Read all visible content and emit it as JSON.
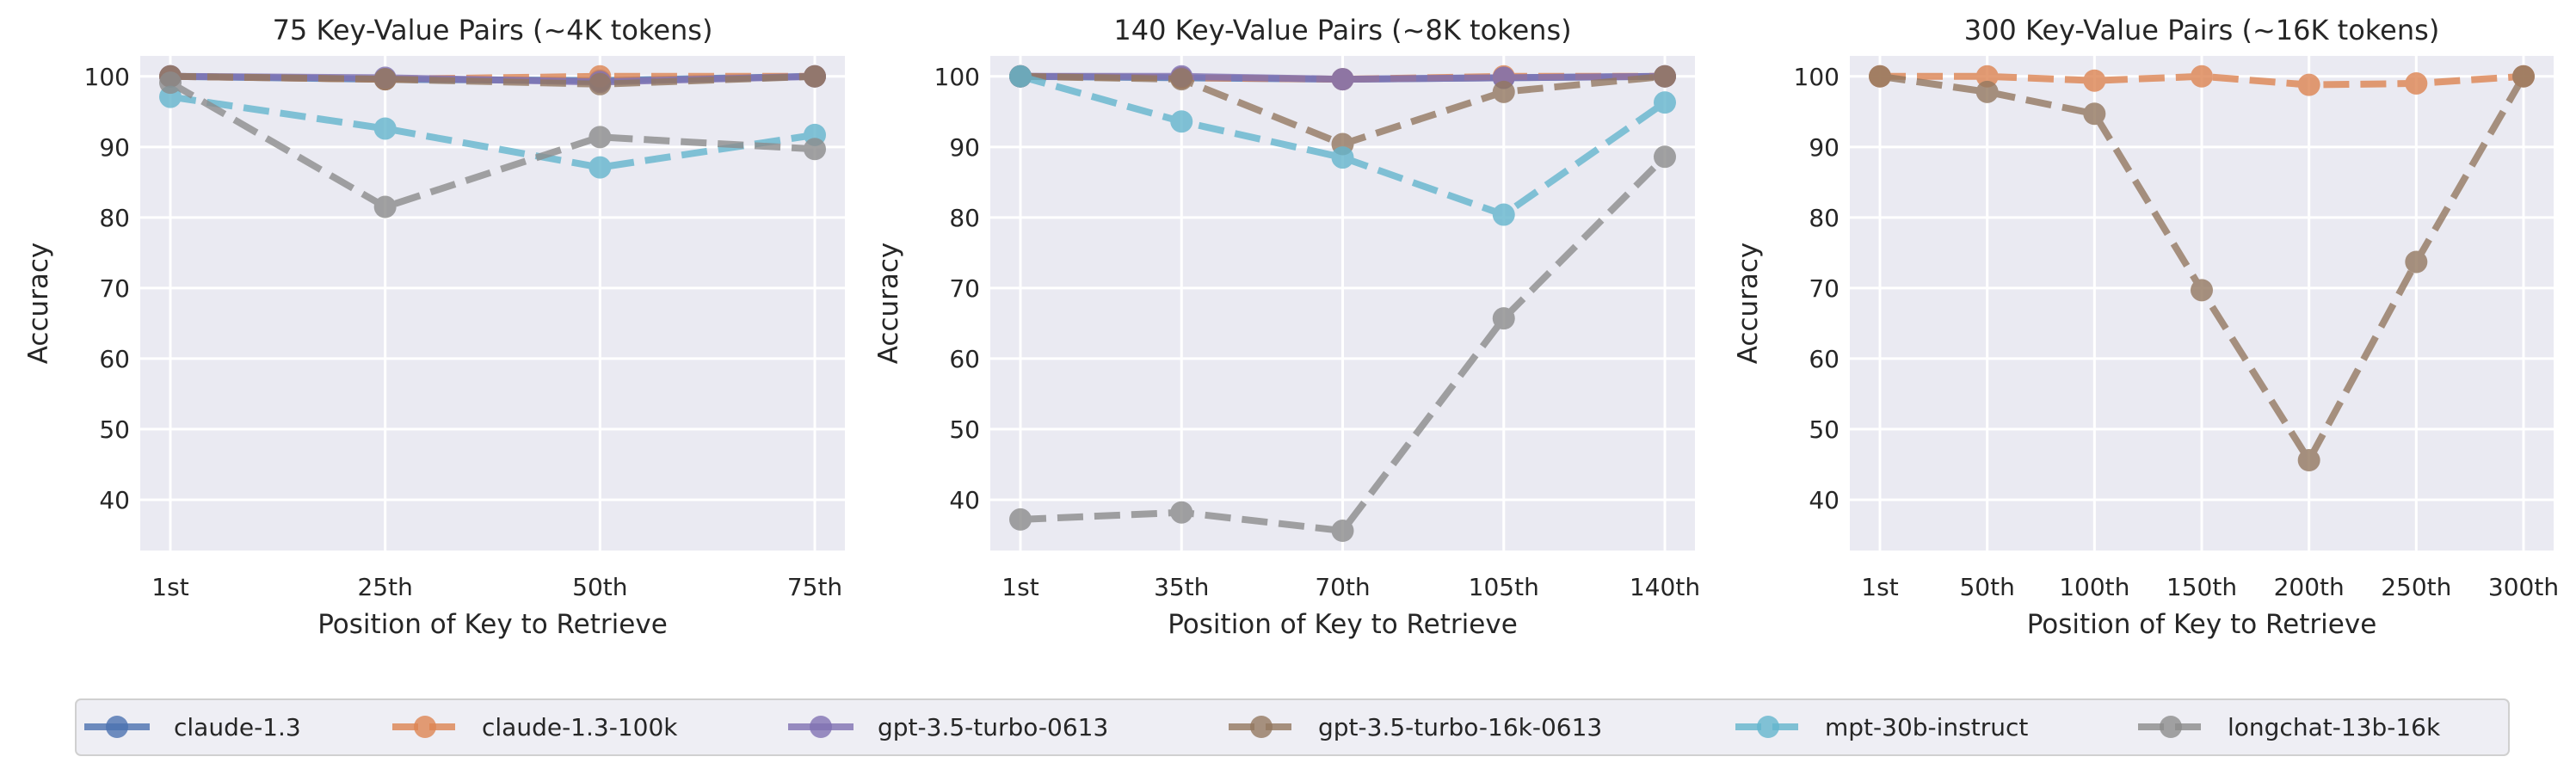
{
  "chart_data": [
    {
      "type": "line",
      "title": "75 Key-Value Pairs (~4K tokens)",
      "xlabel": "Position of Key to Retrieve",
      "ylabel": "Accuracy",
      "categories": [
        "1st",
        "25th",
        "50th",
        "75th"
      ],
      "ylim": [
        32.8,
        102.9
      ],
      "yticks": [
        40,
        50,
        60,
        70,
        80,
        90,
        100
      ],
      "grid": true,
      "series": [
        {
          "name": "claude-1.3",
          "values": [
            100,
            99.6,
            99.4,
            100
          ]
        },
        {
          "name": "claude-1.3-100k",
          "values": [
            100,
            99.6,
            100,
            100
          ]
        },
        {
          "name": "gpt-3.5-turbo-0613",
          "values": [
            100,
            99.8,
            99.2,
            100
          ]
        },
        {
          "name": "gpt-3.5-turbo-16k-0613",
          "values": [
            100,
            99.6,
            98.9,
            100
          ]
        },
        {
          "name": "mpt-30b-instruct",
          "values": [
            97.1,
            92.6,
            87.1,
            91.7
          ]
        },
        {
          "name": "longchat-13b-16k",
          "values": [
            99.1,
            81.5,
            91.4,
            89.7
          ]
        }
      ]
    },
    {
      "type": "line",
      "title": "140 Key-Value Pairs (~8K tokens)",
      "xlabel": "Position of Key to Retrieve",
      "ylabel": "Accuracy",
      "categories": [
        "1st",
        "35th",
        "70th",
        "105th",
        "140th"
      ],
      "ylim": [
        32.8,
        102.9
      ],
      "yticks": [
        40,
        50,
        60,
        70,
        80,
        90,
        100
      ],
      "grid": true,
      "series": [
        {
          "name": "claude-1.3",
          "values": [
            100,
            99.8,
            99.6,
            99.8,
            100
          ]
        },
        {
          "name": "claude-1.3-100k",
          "values": [
            100,
            99.8,
            99.6,
            100,
            100
          ]
        },
        {
          "name": "gpt-3.5-turbo-0613",
          "values": [
            100,
            100,
            99.6,
            99.8,
            100
          ]
        },
        {
          "name": "gpt-3.5-turbo-16k-0613",
          "values": [
            100,
            99.6,
            90.4,
            97.8,
            100
          ]
        },
        {
          "name": "mpt-30b-instruct",
          "values": [
            100,
            93.6,
            88.5,
            80.4,
            96.3
          ]
        },
        {
          "name": "longchat-13b-16k",
          "values": [
            37.2,
            38.2,
            35.6,
            65.7,
            88.6
          ]
        }
      ]
    },
    {
      "type": "line",
      "title": "300 Key-Value Pairs (~16K tokens)",
      "xlabel": "Position of Key to Retrieve",
      "ylabel": "Accuracy",
      "categories": [
        "1st",
        "50th",
        "100th",
        "150th",
        "200th",
        "250th",
        "300th"
      ],
      "ylim": [
        32.8,
        102.9
      ],
      "yticks": [
        40,
        50,
        60,
        70,
        80,
        90,
        100
      ],
      "grid": true,
      "series": [
        {
          "name": "claude-1.3-100k",
          "values": [
            100,
            100,
            99.4,
            100,
            98.8,
            99.0,
            100
          ]
        },
        {
          "name": "gpt-3.5-turbo-16k-0613",
          "values": [
            100,
            97.8,
            94.7,
            69.7,
            45.6,
            73.7,
            100
          ]
        }
      ]
    }
  ],
  "legend": {
    "placement": "bottom",
    "entries": [
      {
        "name": "claude-1.3",
        "color": "#4c72b0",
        "dashed": false
      },
      {
        "name": "claude-1.3-100k",
        "color": "#dd8452",
        "dashed": true
      },
      {
        "name": "gpt-3.5-turbo-0613",
        "color": "#8172b3",
        "dashed": false
      },
      {
        "name": "gpt-3.5-turbo-16k-0613",
        "color": "#937860",
        "dashed": true
      },
      {
        "name": "mpt-30b-instruct",
        "color": "#64b5cd",
        "dashed": true
      },
      {
        "name": "longchat-13b-16k",
        "color": "#8c8c8c",
        "dashed": true
      }
    ]
  }
}
